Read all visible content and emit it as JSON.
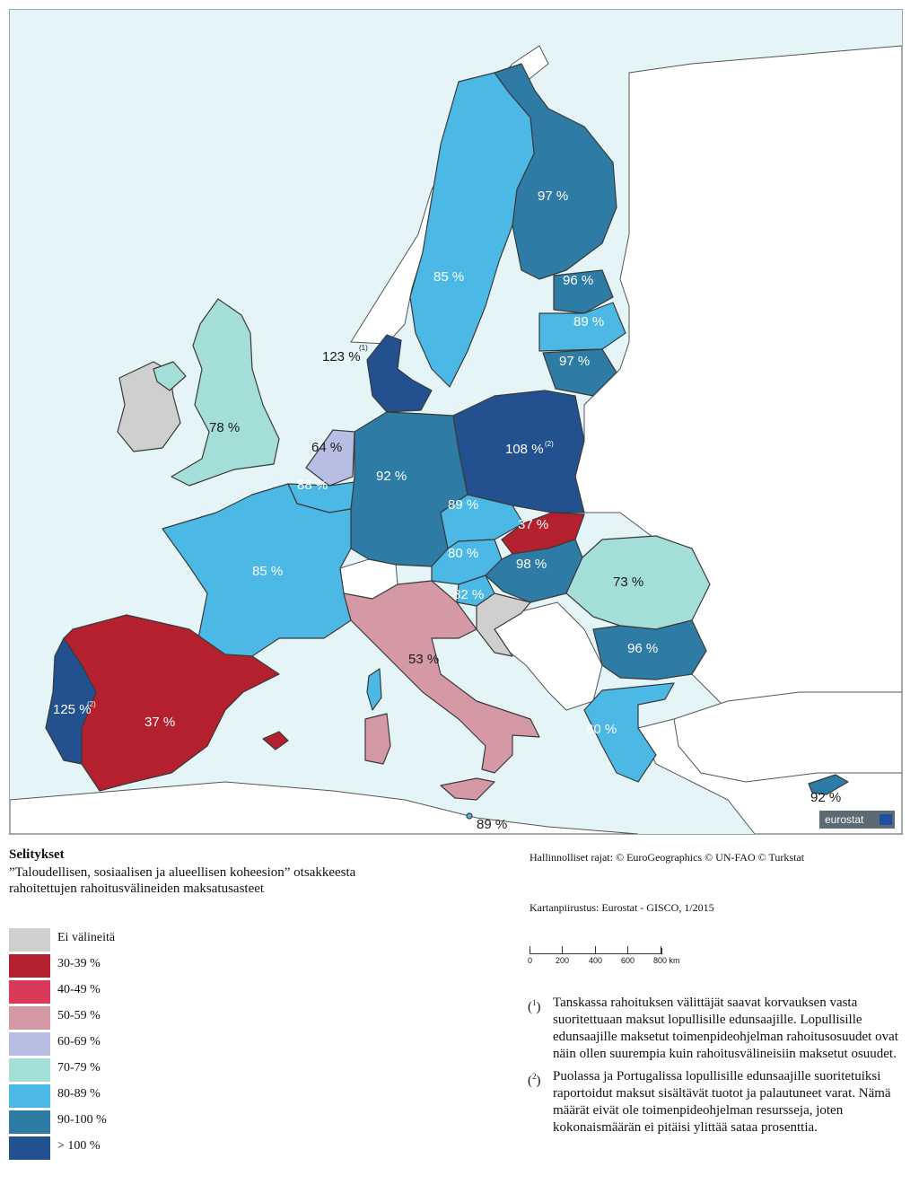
{
  "map": {
    "colors": {
      "sea": "#e4f4f7",
      "other_land": "#ffffff",
      "no_instruments": "#cfcfcf",
      "r30_39": "#b5202e",
      "r40_49": "#d93a5a",
      "r50_59": "#d599a5",
      "r60_69": "#b7bde3",
      "r70_79": "#a4ded8",
      "r80_89": "#4cb8e6",
      "r90_100": "#2e7ba6",
      "over_100": "#23508f"
    },
    "labels": {
      "finland": "97 %",
      "sweden": "85 %",
      "estonia": "96 %",
      "latvia": "89 %",
      "lithuania": "97 %",
      "denmark": "123 %",
      "denmark_note": "(1)",
      "uk": "78 %",
      "netherlands": "64 %",
      "belgium": "88 %",
      "germany": "92 %",
      "poland": "108 %",
      "poland_note": "(2)",
      "czechia": "89 %",
      "slovakia": "37 %",
      "austria": "80 %",
      "hungary": "98 %",
      "slovenia": "82 %",
      "romania": "73 %",
      "france": "85 %",
      "italy": "53 %",
      "bulgaria": "96 %",
      "spain": "37 %",
      "portugal": "125 %",
      "portugal_note": "(2)",
      "greece": "80 %",
      "cyprus": "92 %",
      "malta": "89 %"
    },
    "badge": "eurostat"
  },
  "legend": {
    "title": "Selitykset",
    "subtitle": "”Taloudellisen, sosiaalisen ja alueellisen koheesion” otsakkeesta rahoitettujen rahoitusvälineiden maksatusasteet",
    "items": [
      {
        "label": "Ei välineitä",
        "color": "#cfcfcf"
      },
      {
        "label": "30-39 %",
        "color": "#b5202e"
      },
      {
        "label": "40-49 %",
        "color": "#d93a5a"
      },
      {
        "label": "50-59 %",
        "color": "#d599a5"
      },
      {
        "label": "60-69 %",
        "color": "#b7bde3"
      },
      {
        "label": "70-79 %",
        "color": "#a4ded8"
      },
      {
        "label": "80-89 %",
        "color": "#4cb8e6"
      },
      {
        "label": "90-100 %",
        "color": "#2e7ba6"
      },
      {
        "label": "> 100 %",
        "color": "#23508f"
      }
    ]
  },
  "credits": {
    "boundaries": "Hallinnolliset rajat: © EuroGeographics © UN-FAO © Turkstat",
    "cartography": "Kartanpiirustus: Eurostat - GISCO, 1/2015"
  },
  "scale": {
    "ticks": [
      "0",
      "200",
      "400",
      "600",
      "800 km"
    ]
  },
  "notes": [
    {
      "marker": "1",
      "text": "Tanskassa rahoituksen välittäjät saavat korvauksen vasta suoritettuaan maksut lopullisille edunsaajille. Lopullisille edunsaajille maksetut toimenpideohjelman rahoitusosuudet ovat näin ollen suurempia kuin rahoitusvälineisiin maksetut osuudet."
    },
    {
      "marker": "2",
      "text": "Puolassa ja Portugalissa lopullisille edunsaajille suoritetuiksi raportoidut maksut sisältävät tuotot ja palautuneet varat. Nämä määrät eivät ole toimenpideohjelman resursseja, joten kokonaismäärän ei pitäisi ylittää sataa prosenttia."
    }
  ]
}
